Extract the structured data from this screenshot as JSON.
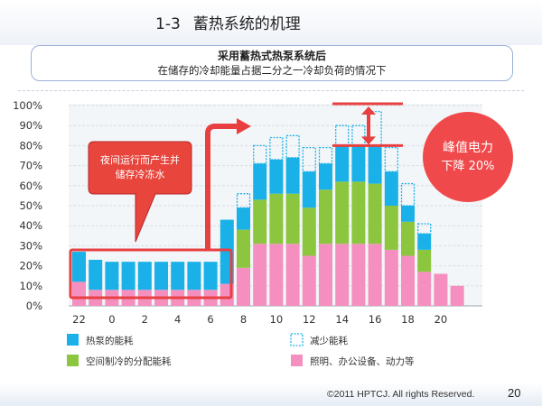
{
  "slide": {
    "title_number": "1-3",
    "title_text": "蓄热系统的机理",
    "subtitle_line1": "采用蓄热式热泵系统后",
    "subtitle_line2": "在储存的冷却能量占据二分之一冷却负荷的情况下",
    "copyright": "©2011 HPTCJ. All rights Reserved.",
    "page_number": "20"
  },
  "chart_data": {
    "type": "bar",
    "stacked": true,
    "y_unit": "%",
    "ylim": [
      0,
      100
    ],
    "y_ticks": [
      "0%",
      "10%",
      "20%",
      "30%",
      "40%",
      "50%",
      "60%",
      "70%",
      "80%",
      "90%",
      "100%"
    ],
    "x_ticks": [
      "22",
      "0",
      "2",
      "4",
      "6",
      "8",
      "10",
      "12",
      "14",
      "16",
      "18",
      "20"
    ],
    "hours": [
      22,
      23,
      0,
      1,
      2,
      3,
      4,
      5,
      6,
      7,
      8,
      9,
      10,
      11,
      12,
      13,
      14,
      15,
      16,
      17,
      18,
      19,
      20,
      21
    ],
    "series": [
      {
        "name": "照明、办公设备、动力等",
        "color": "#f48fbf",
        "values": [
          12,
          8,
          8,
          8,
          8,
          8,
          8,
          8,
          8,
          11,
          19,
          31,
          31,
          31,
          25,
          31,
          31,
          31,
          31,
          28,
          25,
          17,
          16,
          10
        ]
      },
      {
        "name": "空间制冷的分配能耗",
        "color": "#8cc63e",
        "values": [
          0,
          0,
          0,
          0,
          0,
          0,
          0,
          0,
          0,
          0,
          19,
          22,
          25,
          25,
          24,
          27,
          31,
          31,
          30,
          22,
          17,
          11,
          0,
          0
        ]
      },
      {
        "name": "热泵的能耗",
        "color": "#1ab1e8",
        "values": [
          15,
          15,
          14,
          14,
          14,
          14,
          14,
          14,
          14,
          32,
          11,
          18,
          17,
          18,
          18,
          13,
          18,
          18,
          19,
          17,
          8,
          8,
          0,
          0
        ]
      },
      {
        "name": "减少能耗",
        "color": "#1ab1e8",
        "style": "dashed-outline",
        "values": [
          0,
          0,
          0,
          0,
          0,
          0,
          0,
          0,
          0,
          0,
          7,
          9,
          11,
          11,
          12,
          8,
          10,
          10,
          17,
          12,
          11,
          5,
          0,
          0
        ]
      }
    ],
    "annotations": {
      "night_callout": [
        "夜间运行而产生并",
        "储存冷冻水"
      ],
      "peak_callout": [
        "峰值电力",
        "下降 20%"
      ],
      "peak_from": 100,
      "peak_to": 80
    },
    "legend": [
      {
        "label": "热泵的能耗",
        "swatch": "#1ab1e8",
        "style": "fill"
      },
      {
        "label": "减少能耗",
        "swatch": "#1ab1e8",
        "style": "dashed"
      },
      {
        "label": "空间制冷的分配能耗",
        "swatch": "#8cc63e",
        "style": "fill"
      },
      {
        "label": "照明、办公设备、动力等",
        "swatch": "#f48fbf",
        "style": "fill"
      }
    ],
    "grid": true,
    "colors": {
      "accent_red": "#e84040",
      "callout_red": "#e8453c",
      "peak_circle": "#f0494b"
    }
  }
}
